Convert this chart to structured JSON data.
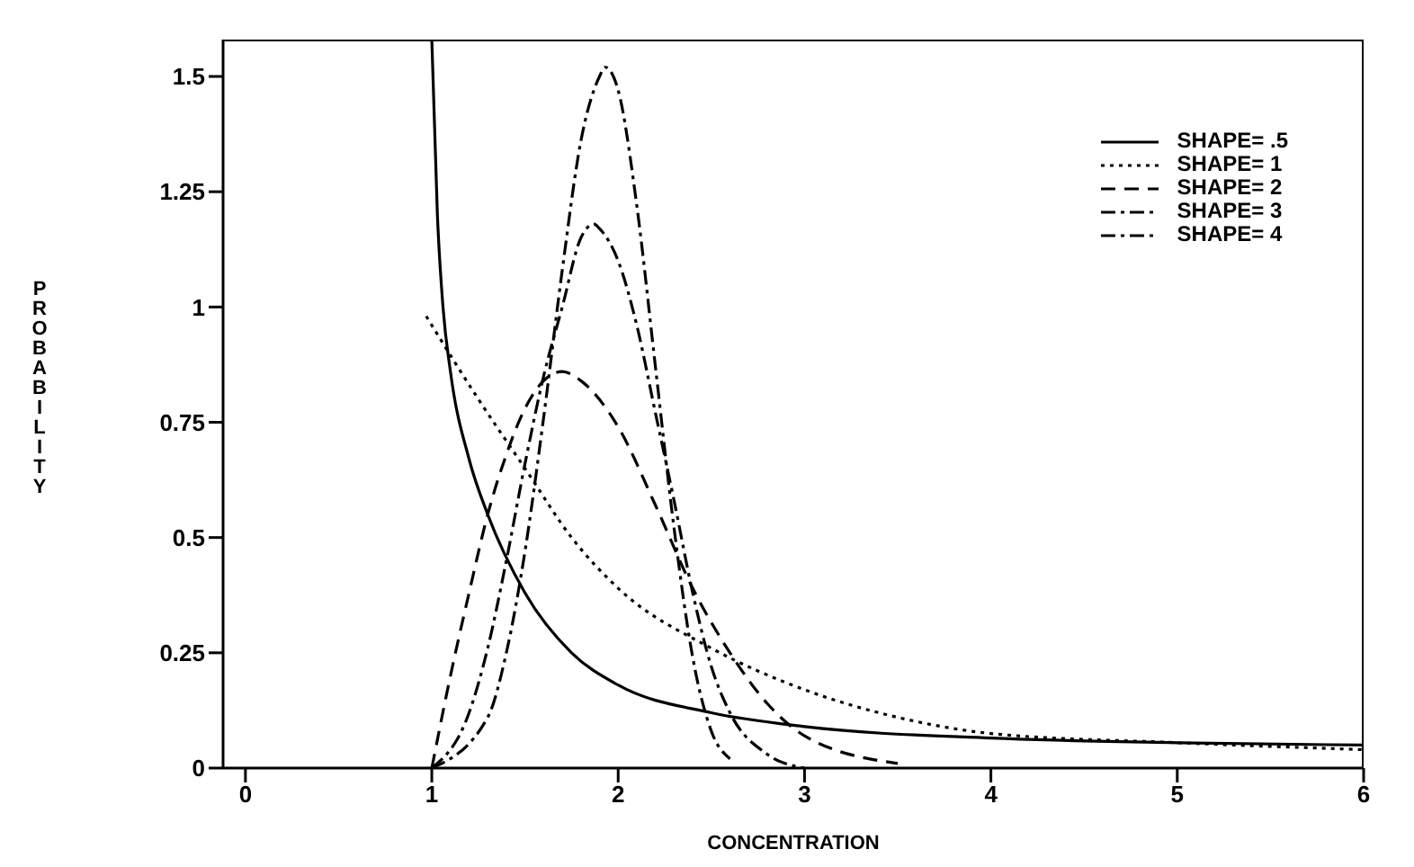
{
  "chart_data": {
    "type": "line",
    "xlabel": "CONCENTRATION",
    "ylabel": "PROBABILITY",
    "xlim": [
      -0.12,
      6
    ],
    "ylim": [
      0,
      1.58
    ],
    "xticks": [
      0,
      1,
      2,
      3,
      4,
      5,
      6
    ],
    "yticks": [
      0,
      0.25,
      0.5,
      0.75,
      1,
      1.25,
      1.5
    ],
    "legend": "top right",
    "marker": "none",
    "series": [
      {
        "name": "SHAPE= .5",
        "color": "#000000",
        "line_style": "solid",
        "x": [
          1.0,
          1.03,
          1.06,
          1.1,
          1.2,
          1.3,
          1.5,
          1.75,
          2,
          2.5,
          3,
          4,
          5,
          6
        ],
        "values": [
          1.58,
          1.2,
          1.0,
          0.86,
          0.67,
          0.55,
          0.38,
          0.25,
          0.18,
          0.12,
          0.09,
          0.065,
          0.055,
          0.05
        ]
      },
      {
        "name": "SHAPE= 1",
        "color": "#000000",
        "line_style": "dotted",
        "x": [
          0.97,
          1.25,
          1.5,
          1.75,
          2,
          2.5,
          3,
          3.5,
          4,
          5,
          6
        ],
        "values": [
          0.98,
          0.8,
          0.65,
          0.5,
          0.39,
          0.26,
          0.17,
          0.11,
          0.075,
          0.055,
          0.04
        ]
      },
      {
        "name": "SHAPE= 2",
        "color": "#000000",
        "line_style": "dashed",
        "x": [
          1,
          1.1,
          1.2,
          1.3,
          1.4,
          1.5,
          1.6,
          1.7,
          1.8,
          2,
          2.2,
          2.4,
          2.6,
          2.8,
          3,
          3.5
        ],
        "values": [
          0,
          0.2,
          0.38,
          0.55,
          0.68,
          0.78,
          0.84,
          0.86,
          0.84,
          0.74,
          0.57,
          0.39,
          0.25,
          0.14,
          0.07,
          0.01
        ]
      },
      {
        "name": "SHAPE= 3",
        "color": "#000000",
        "line_style": "dashdot",
        "x": [
          1,
          1.2,
          1.3,
          1.4,
          1.5,
          1.6,
          1.7,
          1.8,
          1.87,
          1.9,
          2,
          2.1,
          2.2,
          2.3,
          2.4,
          2.5,
          2.6,
          2.8,
          3
        ],
        "values": [
          0,
          0.12,
          0.26,
          0.45,
          0.66,
          0.85,
          1.0,
          1.15,
          1.18,
          1.17,
          1.1,
          0.96,
          0.77,
          0.58,
          0.38,
          0.22,
          0.12,
          0.03,
          0
        ]
      },
      {
        "name": "SHAPE= 4",
        "color": "#000000",
        "line_style": "dashdot",
        "x": [
          1,
          1.3,
          1.4,
          1.5,
          1.6,
          1.7,
          1.8,
          1.9,
          1.93,
          2,
          2.1,
          2.2,
          2.3,
          2.4,
          2.5,
          2.6
        ],
        "values": [
          0,
          0.11,
          0.25,
          0.47,
          0.76,
          1.08,
          1.36,
          1.5,
          1.52,
          1.47,
          1.22,
          0.87,
          0.52,
          0.24,
          0.08,
          0.02
        ]
      }
    ]
  }
}
